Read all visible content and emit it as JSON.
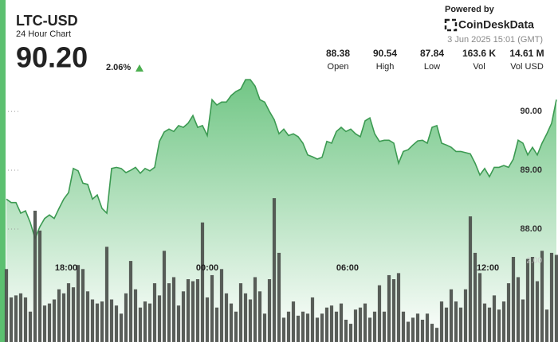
{
  "header": {
    "title": "LTC-USD",
    "subtitle": "24 Hour Chart",
    "last": "90.20",
    "change": "2.06%",
    "powered": "Powered by",
    "brand": "CoinDeskData",
    "timestamp": "3 Jun 2025 15:01 (GMT)"
  },
  "stats": [
    {
      "value": "88.38",
      "label": "Open"
    },
    {
      "value": "90.54",
      "label": "High"
    },
    {
      "value": "87.84",
      "label": "Low"
    },
    {
      "value": "163.6 K",
      "label": "Vol"
    },
    {
      "value": "14.61 M",
      "label": "Vol USD"
    }
  ],
  "chart_data": {
    "type": "area",
    "xlim": [
      0,
      115
    ],
    "xticks": [
      {
        "value": 12.5,
        "label": "18:00"
      },
      {
        "value": 42,
        "label": "00:00"
      },
      {
        "value": 71.33,
        "label": "06:00"
      },
      {
        "value": 100.67,
        "label": "12:00"
      }
    ],
    "ylim": [
      86.08,
      90.61
    ],
    "yticks": [
      {
        "value": 88,
        "label": "88.00"
      },
      {
        "value": 89,
        "label": "89.00"
      },
      {
        "value": 90,
        "label": "90.00"
      }
    ],
    "y2lim": [
      0,
      4.2
    ],
    "y2ticks": [
      {
        "value": 2,
        "label": "2.00"
      }
    ],
    "series": [
      {
        "type": "area",
        "color": "#3c9a52",
        "values": [
          88.51,
          88.45,
          88.45,
          88.27,
          88.31,
          88.11,
          87.84,
          88.04,
          88.18,
          88.24,
          88.18,
          88.35,
          88.51,
          88.62,
          89.03,
          88.99,
          88.78,
          88.76,
          88.51,
          88.58,
          88.35,
          88.27,
          89.03,
          89.05,
          89.03,
          88.96,
          89.0,
          89.05,
          88.95,
          89.03,
          88.99,
          89.05,
          89.49,
          89.65,
          89.7,
          89.66,
          89.76,
          89.73,
          89.8,
          89.93,
          89.73,
          89.76,
          89.59,
          90.2,
          90.11,
          90.16,
          90.16,
          90.27,
          90.34,
          90.38,
          90.54,
          90.54,
          90.43,
          90.2,
          90.16,
          90.0,
          89.86,
          89.62,
          89.7,
          89.59,
          89.62,
          89.57,
          89.46,
          89.26,
          89.23,
          89.19,
          89.22,
          89.49,
          89.46,
          89.66,
          89.73,
          89.66,
          89.7,
          89.62,
          89.57,
          89.84,
          89.89,
          89.62,
          89.49,
          89.51,
          89.51,
          89.46,
          89.12,
          89.32,
          89.35,
          89.43,
          89.5,
          89.51,
          89.46,
          89.73,
          89.76,
          89.46,
          89.43,
          89.39,
          89.32,
          89.32,
          89.3,
          89.28,
          89.12,
          88.92,
          89.03,
          88.89,
          89.05,
          89.05,
          89.08,
          89.05,
          89.19,
          89.51,
          89.46,
          89.26,
          89.39,
          89.26,
          89.46,
          89.62,
          89.8,
          90.2
        ]
      },
      {
        "type": "bar",
        "axis": "y2",
        "color": "#4b4f4b",
        "values": [
          1.8,
          1.1,
          1.15,
          1.2,
          1.1,
          0.75,
          3.24,
          2.75,
          0.9,
          0.95,
          1.05,
          1.3,
          1.2,
          1.45,
          1.35,
          1.9,
          1.8,
          1.25,
          1.05,
          0.95,
          1.0,
          2.35,
          1.05,
          0.9,
          0.7,
          1.2,
          2.0,
          1.3,
          0.85,
          1.0,
          0.95,
          1.45,
          1.15,
          2.25,
          1.45,
          1.6,
          0.9,
          1.25,
          1.55,
          1.5,
          1.55,
          2.95,
          1.1,
          1.65,
          0.85,
          1.8,
          1.2,
          0.95,
          0.75,
          1.45,
          1.2,
          1.05,
          1.6,
          1.25,
          0.7,
          1.55,
          3.55,
          2.2,
          0.6,
          0.75,
          1.0,
          0.65,
          0.75,
          0.7,
          1.1,
          0.6,
          0.7,
          0.85,
          0.9,
          0.75,
          0.95,
          0.55,
          0.45,
          0.8,
          0.85,
          0.95,
          0.6,
          0.75,
          1.4,
          0.75,
          1.65,
          1.55,
          1.7,
          0.75,
          0.5,
          0.6,
          0.7,
          0.55,
          0.7,
          0.45,
          0.35,
          1.0,
          0.85,
          1.3,
          1.0,
          0.85,
          1.3,
          3.1,
          2.2,
          1.7,
          0.95,
          0.85,
          1.15,
          0.8,
          1.0,
          1.45,
          2.1,
          1.6,
          1.05,
          2.05,
          2.1,
          1.5,
          2.25,
          0.8,
          2.2,
          2.15
        ]
      }
    ]
  }
}
